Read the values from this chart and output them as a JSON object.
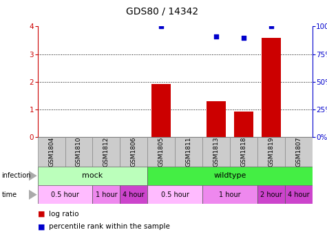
{
  "title": "GDS80 / 14342",
  "samples": [
    "GSM1804",
    "GSM1810",
    "GSM1812",
    "GSM1806",
    "GSM1805",
    "GSM1811",
    "GSM1813",
    "GSM1818",
    "GSM1819",
    "GSM1807"
  ],
  "log_ratio": [
    0,
    0,
    0,
    0,
    1.92,
    0,
    1.3,
    0.93,
    3.58,
    0
  ],
  "percentile": [
    null,
    null,
    null,
    null,
    100,
    null,
    91,
    90,
    100,
    null
  ],
  "infection_groups": [
    {
      "label": "mock",
      "start": 0,
      "end": 4,
      "color": "#bbffbb"
    },
    {
      "label": "wildtype",
      "start": 4,
      "end": 10,
      "color": "#44ee44"
    }
  ],
  "time_groups": [
    {
      "label": "0.5 hour",
      "start": 0,
      "end": 2,
      "color": "#ffbbff"
    },
    {
      "label": "1 hour",
      "start": 2,
      "end": 3,
      "color": "#ee88ee"
    },
    {
      "label": "4 hour",
      "start": 3,
      "end": 4,
      "color": "#cc44cc"
    },
    {
      "label": "0.5 hour",
      "start": 4,
      "end": 6,
      "color": "#ffbbff"
    },
    {
      "label": "1 hour",
      "start": 6,
      "end": 8,
      "color": "#ee88ee"
    },
    {
      "label": "2 hour",
      "start": 8,
      "end": 9,
      "color": "#cc44cc"
    },
    {
      "label": "4 hour",
      "start": 9,
      "end": 10,
      "color": "#cc44cc"
    }
  ],
  "ylim": [
    0,
    4
  ],
  "yticks_left": [
    0,
    1,
    2,
    3,
    4
  ],
  "yticks_right": [
    0,
    25,
    50,
    75,
    100
  ],
  "bar_color": "#cc0000",
  "point_color": "#0000cc",
  "bg_color": "#ffffff",
  "title_fontsize": 10,
  "tick_fontsize": 7.5,
  "sample_fontsize": 6.5,
  "row_fontsize": 8,
  "legend_fontsize": 7.5
}
